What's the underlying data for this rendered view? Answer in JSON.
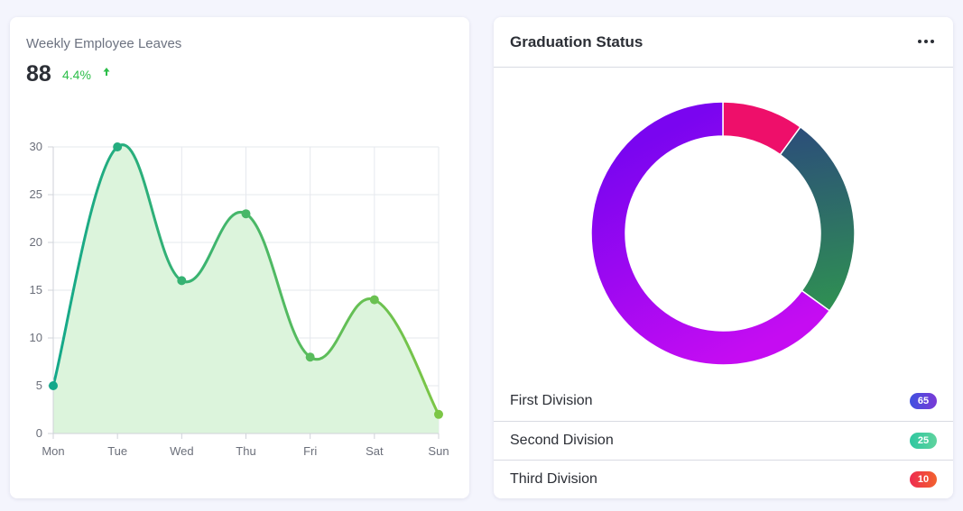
{
  "leaves_card": {
    "title": "Weekly Employee Leaves",
    "value": "88",
    "change": "4.4%",
    "change_icon": "arrow-up-icon",
    "change_color": "#2dbe4a"
  },
  "chart_data": {
    "type": "area",
    "categories": [
      "Mon",
      "Tue",
      "Wed",
      "Thu",
      "Fri",
      "Sat",
      "Sun"
    ],
    "values": [
      5,
      30,
      16,
      23,
      8,
      14,
      2
    ],
    "yticks": [
      0,
      5,
      10,
      15,
      20,
      25,
      30
    ],
    "ylim": [
      0,
      30
    ],
    "grid": true,
    "line_gradient": [
      "#13a88a",
      "#7cc646"
    ],
    "fill_color": "#dcf4dc"
  },
  "graduation_card": {
    "title": "Graduation Status",
    "menu_icon": "more-horizontal-icon",
    "items": [
      {
        "label": "First Division",
        "count": "65",
        "badge_gradient": [
          "#3f51e0",
          "#7a3ad6"
        ]
      },
      {
        "label": "Second Division",
        "count": "25",
        "badge_gradient": [
          "#2fc7a0",
          "#5fd39e"
        ]
      },
      {
        "label": "Third Division",
        "count": "10",
        "badge_gradient": [
          "#ee2b50",
          "#f2622e"
        ]
      }
    ],
    "donut": {
      "type": "pie",
      "segments": [
        {
          "label": "Third Division",
          "value": 10,
          "colors": [
            "#ee0f6a",
            "#ee0f6a"
          ]
        },
        {
          "label": "Second Division",
          "value": 25,
          "colors": [
            "#2c4d7a",
            "#2f9152"
          ]
        },
        {
          "label": "First Division",
          "value": 65,
          "colors": [
            "#c50cf2",
            "#7a05f0"
          ]
        }
      ]
    }
  }
}
